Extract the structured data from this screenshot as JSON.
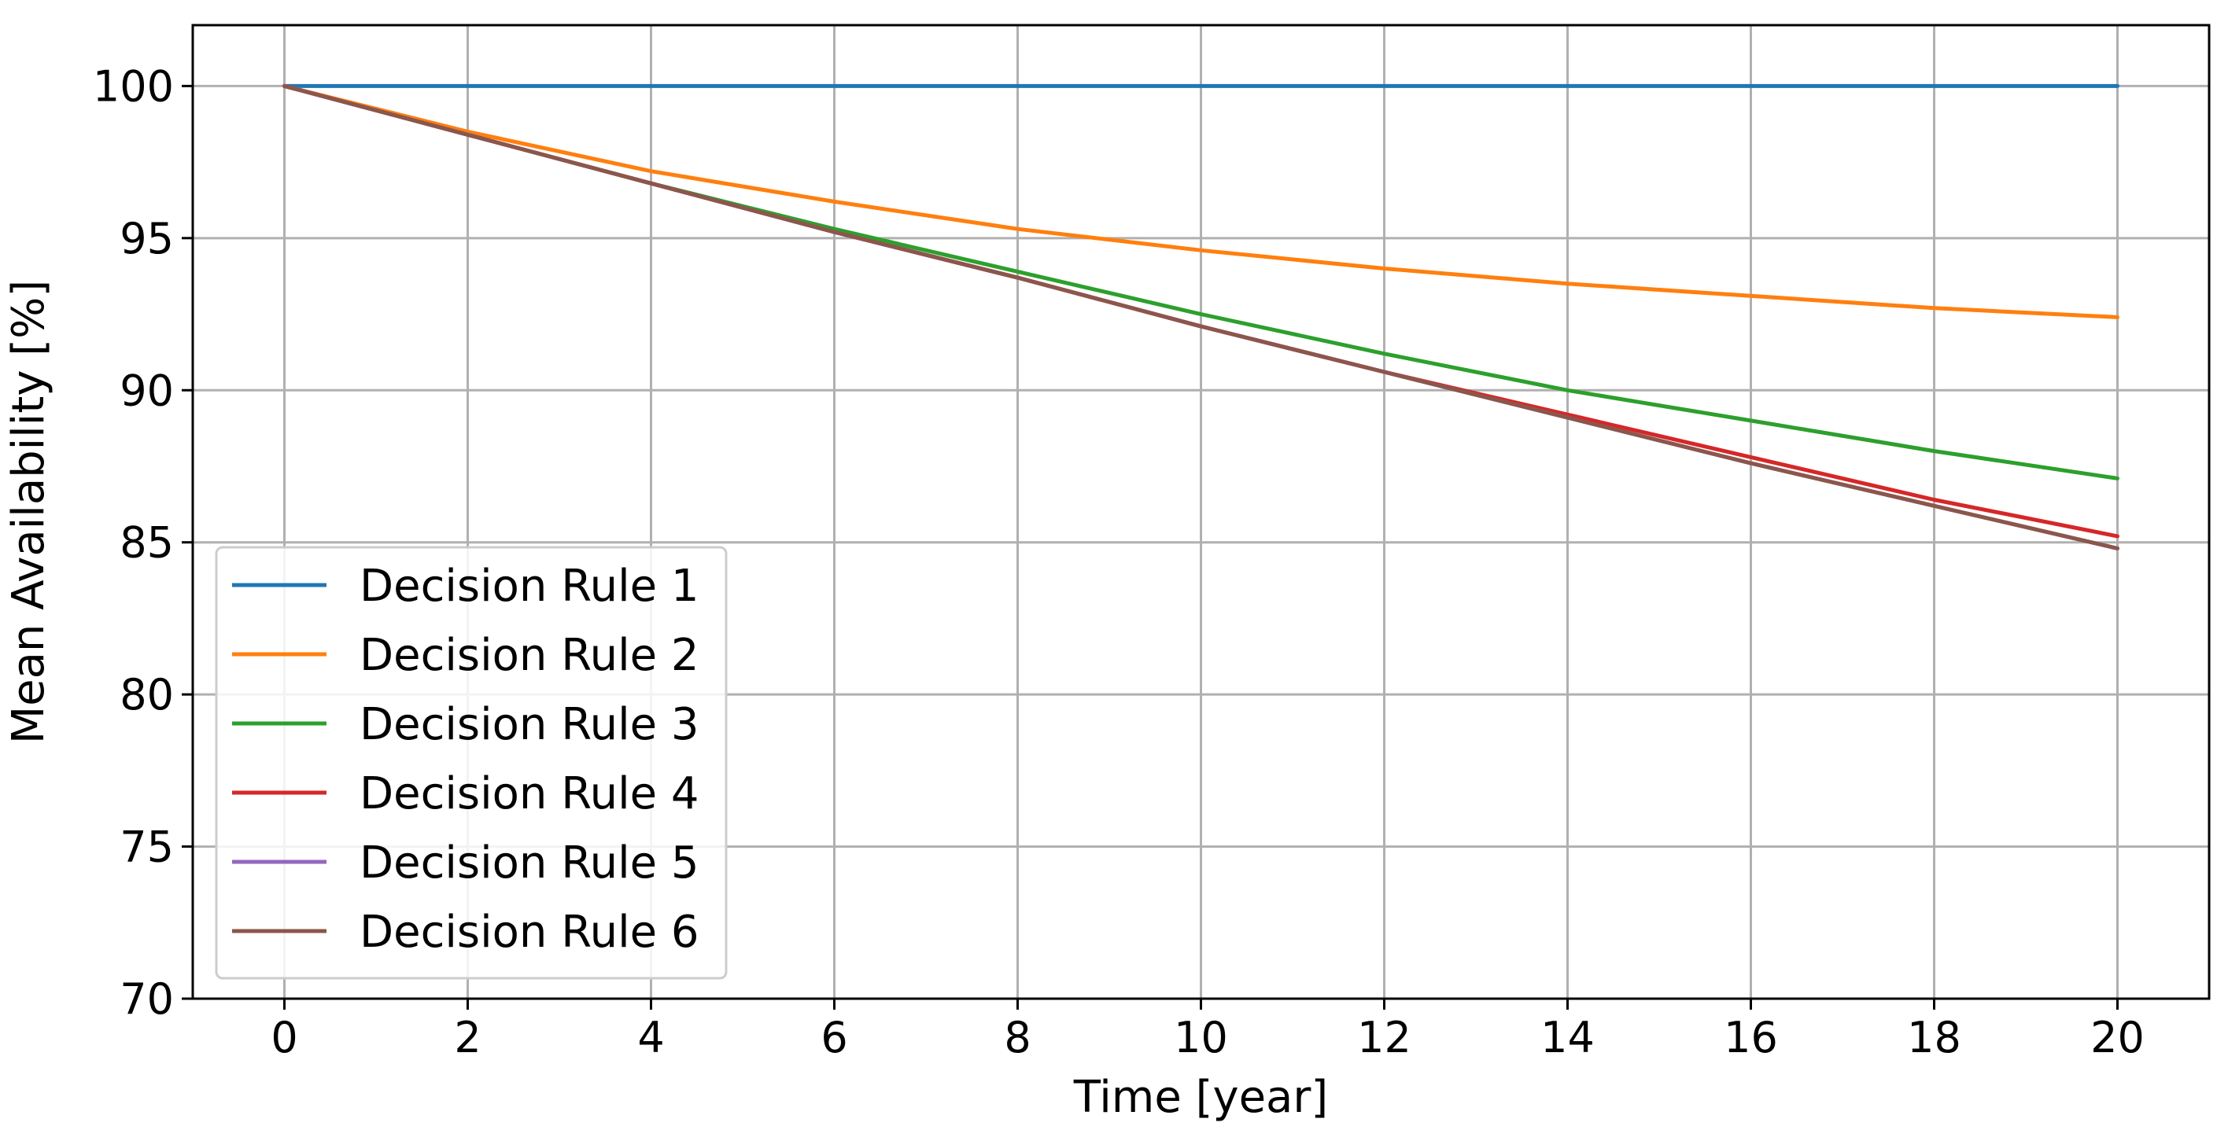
{
  "chart_data": {
    "type": "line",
    "title": "",
    "xlabel": "Time [year]",
    "ylabel": "Mean Availability [%]",
    "xlim": [
      -1,
      21
    ],
    "ylim": [
      70,
      102
    ],
    "xticks": [
      "0",
      "2",
      "4",
      "6",
      "8",
      "10",
      "12",
      "14",
      "16",
      "18",
      "20"
    ],
    "yticks": [
      "70",
      "75",
      "80",
      "85",
      "90",
      "95",
      "100"
    ],
    "grid": true,
    "legend_position": "lower-left",
    "x": [
      0,
      2,
      4,
      6,
      8,
      10,
      12,
      14,
      16,
      18,
      20
    ],
    "series": [
      {
        "name": "Decision Rule 1",
        "color": "#1f77b4",
        "values": [
          100,
          100,
          100,
          100,
          100,
          100,
          100,
          100,
          100,
          100,
          100
        ]
      },
      {
        "name": "Decision Rule 2",
        "color": "#ff7f0e",
        "values": [
          100,
          98.5,
          97.2,
          96.2,
          95.3,
          94.6,
          94.0,
          93.5,
          93.1,
          92.7,
          92.4
        ]
      },
      {
        "name": "Decision Rule 3",
        "color": "#2ca02c",
        "values": [
          100,
          98.4,
          96.8,
          95.3,
          93.9,
          92.5,
          91.2,
          90.0,
          89.0,
          88.0,
          87.1
        ]
      },
      {
        "name": "Decision Rule 4",
        "color": "#d62728",
        "values": [
          100,
          98.4,
          96.8,
          95.2,
          93.7,
          92.1,
          90.6,
          89.2,
          87.8,
          86.4,
          85.2
        ]
      },
      {
        "name": "Decision Rule 5",
        "color": "#9467bd",
        "values": [
          100,
          98.4,
          96.8,
          95.2,
          93.7,
          92.1,
          90.6,
          89.1,
          87.6,
          86.2,
          84.8
        ]
      },
      {
        "name": "Decision Rule 6",
        "color": "#8c564b",
        "values": [
          100,
          98.4,
          96.8,
          95.2,
          93.7,
          92.1,
          90.6,
          89.1,
          87.6,
          86.2,
          84.8
        ]
      }
    ]
  }
}
